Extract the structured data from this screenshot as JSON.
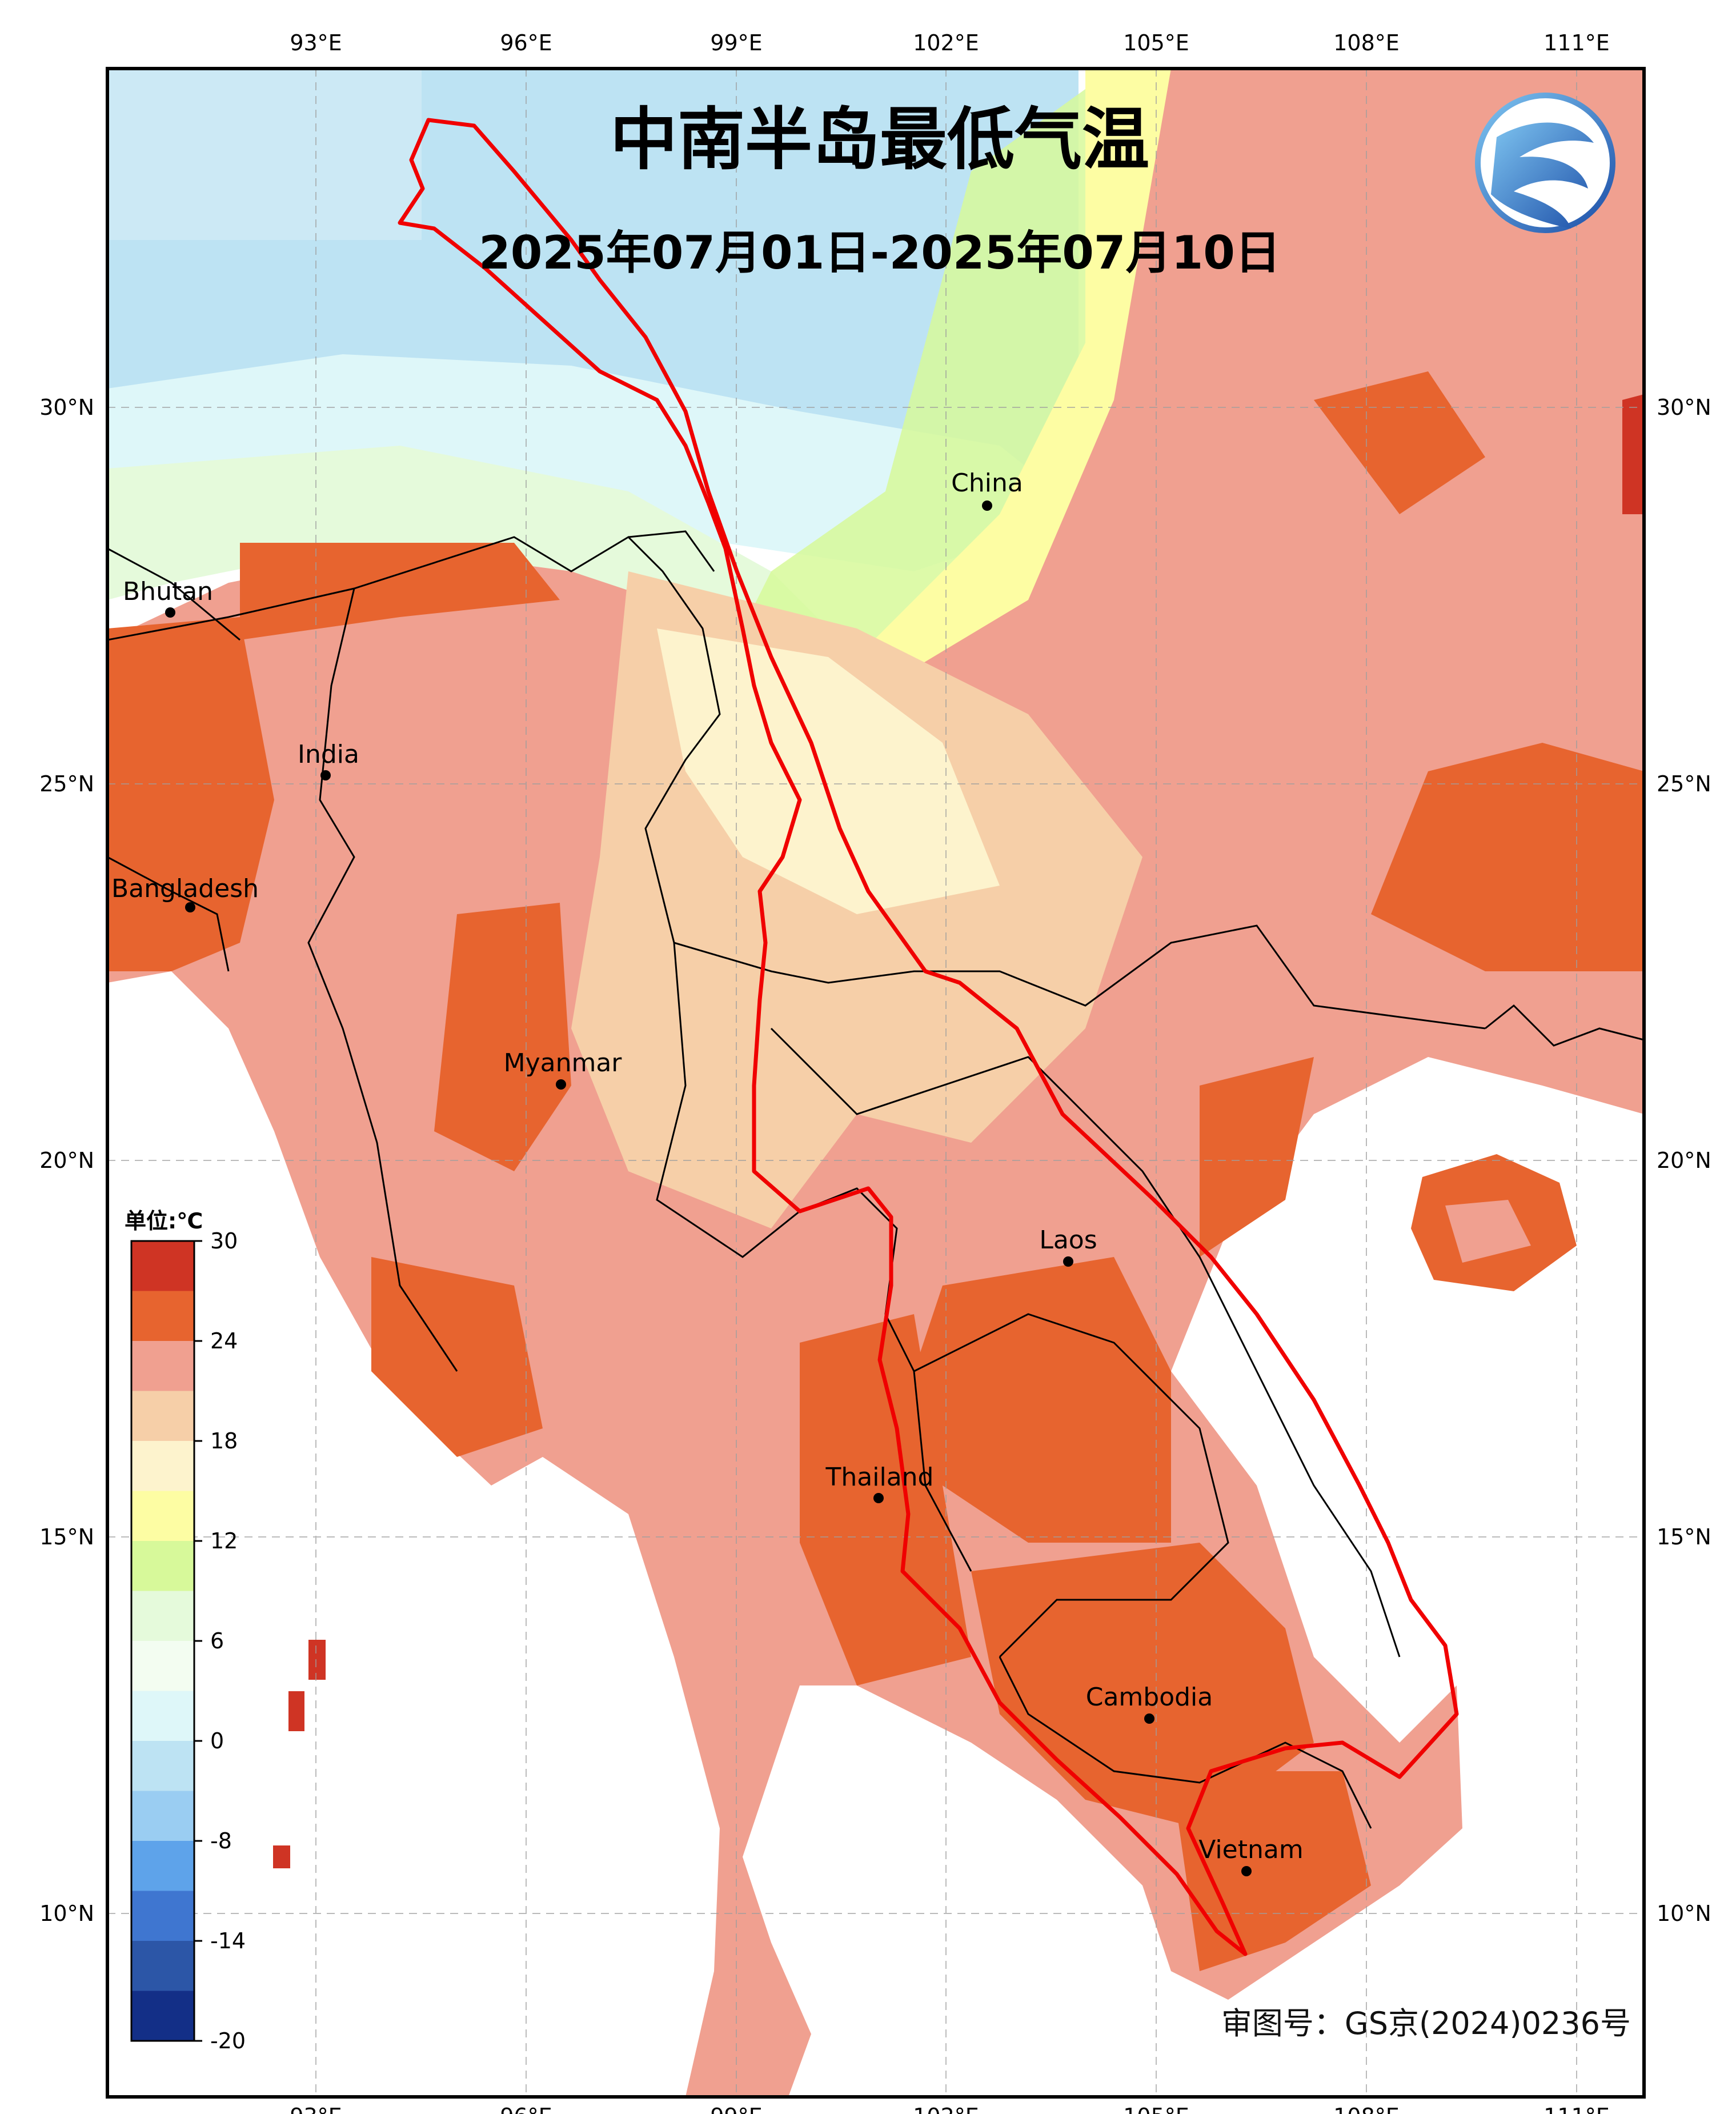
{
  "title": "中南半岛最低气温",
  "date_range": "2025年07月01日-2025年07月10日",
  "credit": "审图号：GS京(2024)0236号",
  "legend": {
    "unit": "单位:℃",
    "tick_labels": [
      "30",
      "24",
      "18",
      "12",
      "6",
      "0",
      "-8",
      "-14",
      "-20"
    ],
    "colors": [
      "#cf3424",
      "#e7642f",
      "#f0a090",
      "#f6cfa8",
      "#fdf3cd",
      "#fdfda3",
      "#d7f99a",
      "#e5fadb",
      "#f3fdf1",
      "#def7f9",
      "#bde3f3",
      "#9acdf2",
      "#5ea3ea",
      "#3f76d0",
      "#2c56a7",
      "#132f87"
    ]
  },
  "longitude_labels": [
    "93°E",
    "96°E",
    "99°E",
    "102°E",
    "105°E",
    "108°E",
    "111°E"
  ],
  "latitude_labels": [
    "30°N",
    "25°N",
    "20°N",
    "15°N",
    "10°N"
  ],
  "places": [
    {
      "name": "China"
    },
    {
      "name": "Bhutan"
    },
    {
      "name": "India"
    },
    {
      "name": "Bangladesh"
    },
    {
      "name": "Myanmar"
    },
    {
      "name": "Laos"
    },
    {
      "name": "Thailand"
    },
    {
      "name": "Cambodia"
    },
    {
      "name": "Vietnam"
    }
  ],
  "logo_icon": "emblem-logo-icon"
}
